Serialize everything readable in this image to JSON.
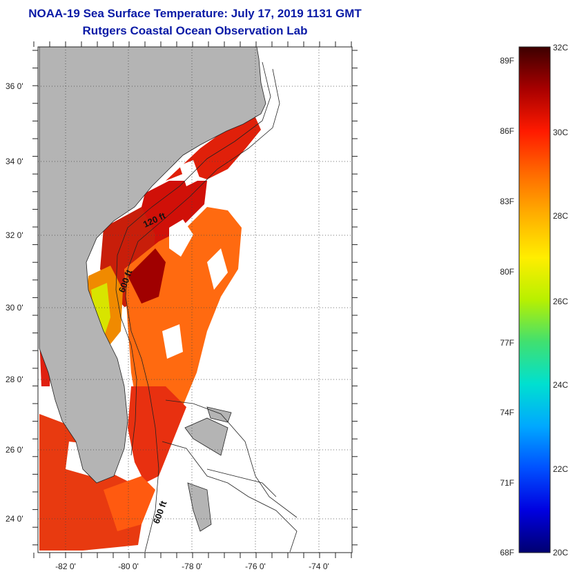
{
  "header": {
    "title": "NOAA-19 Sea Surface Temperature:  July 17, 2019 1131 GMT",
    "subtitle": "Rutgers Coastal Ocean Observation Lab"
  },
  "map": {
    "lat_labels": [
      "36 0'",
      "34 0'",
      "32 0'",
      "30 0'",
      "28 0'",
      "26 0'",
      "24 0'"
    ],
    "lon_labels": [
      "-82 0'",
      "-80 0'",
      "-78 0'",
      "-76 0'",
      "-74 0'"
    ],
    "contour_labels": [
      "120 ft",
      "600 ft",
      "600 ft"
    ]
  },
  "colorbar": {
    "fahrenheit": [
      "89F",
      "86F",
      "83F",
      "80F",
      "77F",
      "74F",
      "71F",
      "68F"
    ],
    "celsius": [
      "32C",
      "30C",
      "28C",
      "26C",
      "24C",
      "22C",
      "20C"
    ],
    "colors": [
      "#3d0000",
      "#a80000",
      "#ff1a00",
      "#ff6a00",
      "#ffb000",
      "#ffee00",
      "#b8f000",
      "#40e070",
      "#00e0d0",
      "#00a8ff",
      "#0050ff",
      "#0000e0",
      "#000070"
    ]
  }
}
